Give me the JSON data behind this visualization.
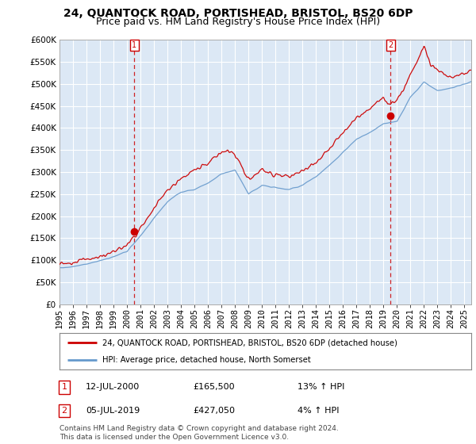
{
  "title": "24, QUANTOCK ROAD, PORTISHEAD, BRISTOL, BS20 6DP",
  "subtitle": "Price paid vs. HM Land Registry's House Price Index (HPI)",
  "ylim": [
    0,
    600000
  ],
  "yticks": [
    0,
    50000,
    100000,
    150000,
    200000,
    250000,
    300000,
    350000,
    400000,
    450000,
    500000,
    550000,
    600000
  ],
  "legend_label_red": "24, QUANTOCK ROAD, PORTISHEAD, BRISTOL, BS20 6DP (detached house)",
  "legend_label_blue": "HPI: Average price, detached house, North Somerset",
  "transaction1_label": "1",
  "transaction1_date": "12-JUL-2000",
  "transaction1_price": "£165,500",
  "transaction1_hpi": "13% ↑ HPI",
  "transaction2_label": "2",
  "transaction2_date": "05-JUL-2019",
  "transaction2_price": "£427,050",
  "transaction2_hpi": "4% ↑ HPI",
  "footer": "Contains HM Land Registry data © Crown copyright and database right 2024.\nThis data is licensed under the Open Government Licence v3.0.",
  "red_color": "#cc0000",
  "blue_color": "#6699cc",
  "marker1_x": 2000.54,
  "marker1_y": 165500,
  "marker2_x": 2019.51,
  "marker2_y": 427050,
  "vline1_x": 2000.54,
  "vline2_x": 2019.51,
  "background_color": "#ffffff",
  "chart_bg_color": "#dce8f5",
  "grid_color": "#ffffff",
  "title_fontsize": 10,
  "subtitle_fontsize": 9,
  "tick_fontsize": 7.5,
  "xlim_start": 1995,
  "xlim_end": 2025.5
}
